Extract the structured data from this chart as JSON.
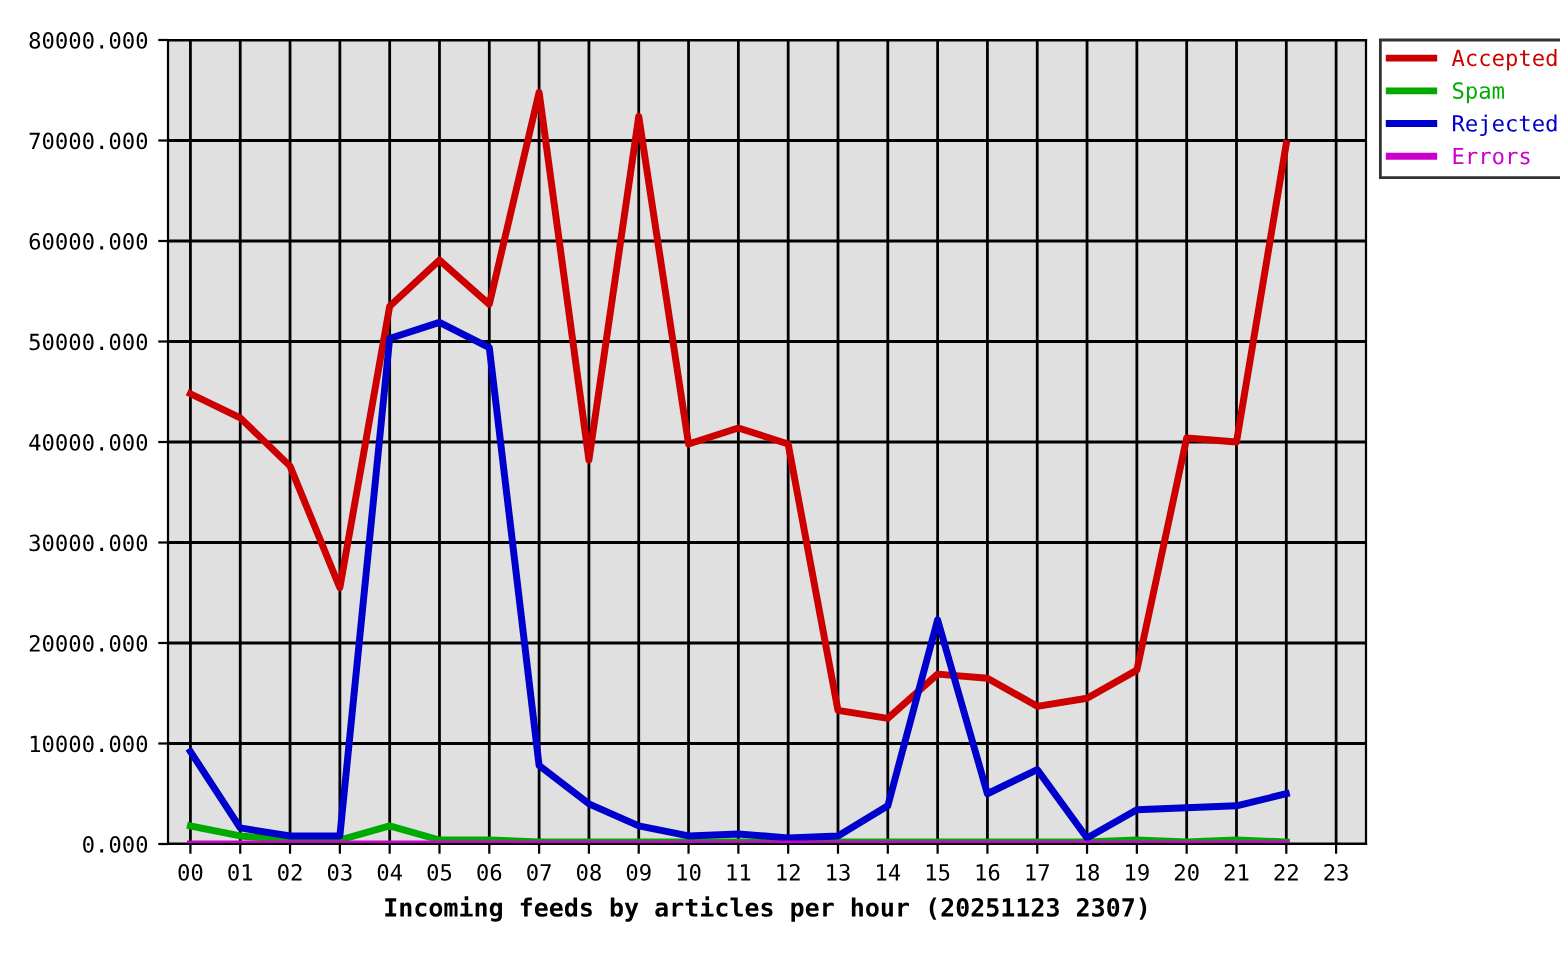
{
  "chart_data": {
    "type": "line",
    "xlabel": "Incoming feeds by articles per hour (20251123 2307)",
    "categories": [
      "00",
      "01",
      "02",
      "03",
      "04",
      "05",
      "06",
      "07",
      "08",
      "09",
      "10",
      "11",
      "12",
      "13",
      "14",
      "15",
      "16",
      "17",
      "18",
      "19",
      "20",
      "21",
      "22",
      "23"
    ],
    "series": [
      {
        "name": "Accepted",
        "color": "#cc0000",
        "values": [
          44800,
          42400,
          37600,
          25500,
          53500,
          58100,
          53700,
          74800,
          38200,
          72400,
          39800,
          41400,
          39800,
          13300,
          12500,
          16900,
          16500,
          13700,
          14500,
          17300,
          40400,
          40000,
          69700,
          null
        ]
      },
      {
        "name": "Spam",
        "color": "#00aa00",
        "values": [
          1800,
          800,
          400,
          400,
          1800,
          400,
          400,
          200,
          200,
          200,
          200,
          200,
          200,
          200,
          200,
          200,
          200,
          200,
          200,
          400,
          200,
          400,
          200,
          null
        ]
      },
      {
        "name": "Rejected",
        "color": "#0000cc",
        "values": [
          9200,
          1600,
          800,
          800,
          50300,
          51900,
          49400,
          7800,
          4000,
          1800,
          800,
          1000,
          600,
          800,
          3800,
          22300,
          5000,
          7400,
          600,
          3400,
          3600,
          3800,
          5000,
          null
        ]
      },
      {
        "name": "Errors",
        "color": "#cc00cc",
        "values": [
          0,
          0,
          0,
          0,
          0,
          0,
          0,
          0,
          0,
          0,
          0,
          0,
          0,
          0,
          0,
          0,
          0,
          0,
          0,
          0,
          0,
          0,
          0,
          null
        ]
      }
    ],
    "ylim": [
      0,
      80000
    ],
    "yticks": [
      {
        "value": 0,
        "label": "0.000"
      },
      {
        "value": 10000,
        "label": "10000.000"
      },
      {
        "value": 20000,
        "label": "20000.000"
      },
      {
        "value": 30000,
        "label": "30000.000"
      },
      {
        "value": 40000,
        "label": "40000.000"
      },
      {
        "value": 50000,
        "label": "50000.000"
      },
      {
        "value": 60000,
        "label": "60000.000"
      },
      {
        "value": 70000,
        "label": "70000.000"
      },
      {
        "value": 80000,
        "label": "80000.000"
      }
    ],
    "grid": true,
    "legend": "top right"
  }
}
